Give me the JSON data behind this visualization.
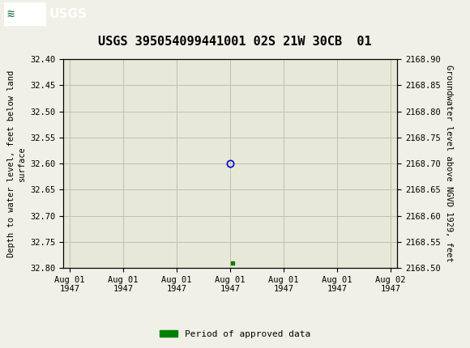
{
  "title": "USGS 395054099441001 02S 21W 30CB  01",
  "ylabel_left": "Depth to water level, feet below land\nsurface",
  "ylabel_right": "Groundwater level above NGVD 1929, feet",
  "ylim_left": [
    32.8,
    32.4
  ],
  "ylim_right": [
    2168.5,
    2168.9
  ],
  "yticks_left": [
    32.4,
    32.45,
    32.5,
    32.55,
    32.6,
    32.65,
    32.7,
    32.75,
    32.8
  ],
  "yticks_right": [
    2168.9,
    2168.85,
    2168.8,
    2168.75,
    2168.7,
    2168.65,
    2168.6,
    2168.55,
    2168.5
  ],
  "header_color": "#0a6b3a",
  "header_text_color": "#ffffff",
  "background_color": "#f0f0e8",
  "plot_bg_color": "#e8e8d8",
  "grid_color": "#c0c0b0",
  "point_open_circle_depth": 32.6,
  "point_open_circle_color": "#0000cc",
  "point_green_square_depth": 32.79,
  "point_green_color": "#008000",
  "legend_label": "Period of approved data",
  "title_fontsize": 11,
  "axis_label_fontsize": 7.5,
  "tick_fontsize": 7.5,
  "legend_fontsize": 8
}
